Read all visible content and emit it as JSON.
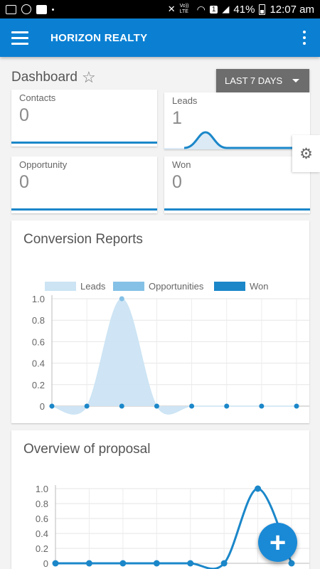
{
  "status_bar": {
    "battery": "41%",
    "time": "12:07 am",
    "volte": "Vo)) LTE",
    "sim": "1",
    "left_icons": [
      "laptop-icon",
      "whatsapp-icon",
      "facebook-icon",
      "dot-icon"
    ],
    "right_icons": [
      "mute-icon",
      "volte-icon",
      "wifi-icon",
      "sim-icon",
      "signal-icon",
      "battery-icon"
    ]
  },
  "app_bar": {
    "title": "HORIZON REALTY",
    "color": "#0b80d3",
    "icons": [
      "menu-icon",
      "more-vert-icon"
    ]
  },
  "dashboard": {
    "title": "Dashboard",
    "favorite_icon": "star-outline-icon",
    "range_label": "LAST 7 DAYS"
  },
  "stats": [
    {
      "label": "Contacts",
      "value": "0"
    },
    {
      "label": "Leads",
      "value": "1"
    },
    {
      "label": "Opportunity",
      "value": "0"
    },
    {
      "label": "Won",
      "value": "0"
    }
  ],
  "settings_icon": "gear-icon",
  "fab": {
    "icon": "plus-icon",
    "label": "+"
  },
  "chart_data": [
    {
      "type": "area",
      "title": "Conversion Reports",
      "legend": [
        "Leads",
        "Opportunities",
        "Won"
      ],
      "legend_position": "top",
      "colors": {
        "Leads": "#cce4f4",
        "Opportunities": "#85c1e6",
        "Won": "#1b87c9"
      },
      "x": [
        1,
        2,
        3,
        4,
        5,
        6,
        7,
        8
      ],
      "ylim": [
        0,
        1
      ],
      "yticks": [
        "1.0",
        "0.8",
        "0.6",
        "0.4",
        "0.2",
        "0"
      ],
      "grid": true,
      "series": [
        {
          "name": "Leads",
          "values": [
            0,
            0,
            1,
            0,
            0,
            0,
            0,
            0
          ]
        },
        {
          "name": "Opportunities",
          "values": [
            0,
            0,
            0,
            0,
            0,
            0,
            0,
            0
          ]
        },
        {
          "name": "Won",
          "values": [
            0,
            0,
            0,
            0,
            0,
            0,
            0,
            0
          ]
        }
      ]
    },
    {
      "type": "line",
      "title": "Overview of proposal",
      "x": [
        1,
        2,
        3,
        4,
        5,
        6,
        7,
        8
      ],
      "ylim": [
        0,
        1
      ],
      "yticks": [
        "1.0",
        "0.8",
        "0.6",
        "0.4",
        "0.2",
        "0"
      ],
      "grid": true,
      "color": "#1b87c9",
      "series": [
        {
          "values": [
            0,
            0,
            0,
            0,
            0,
            0,
            1,
            0
          ]
        }
      ]
    }
  ]
}
